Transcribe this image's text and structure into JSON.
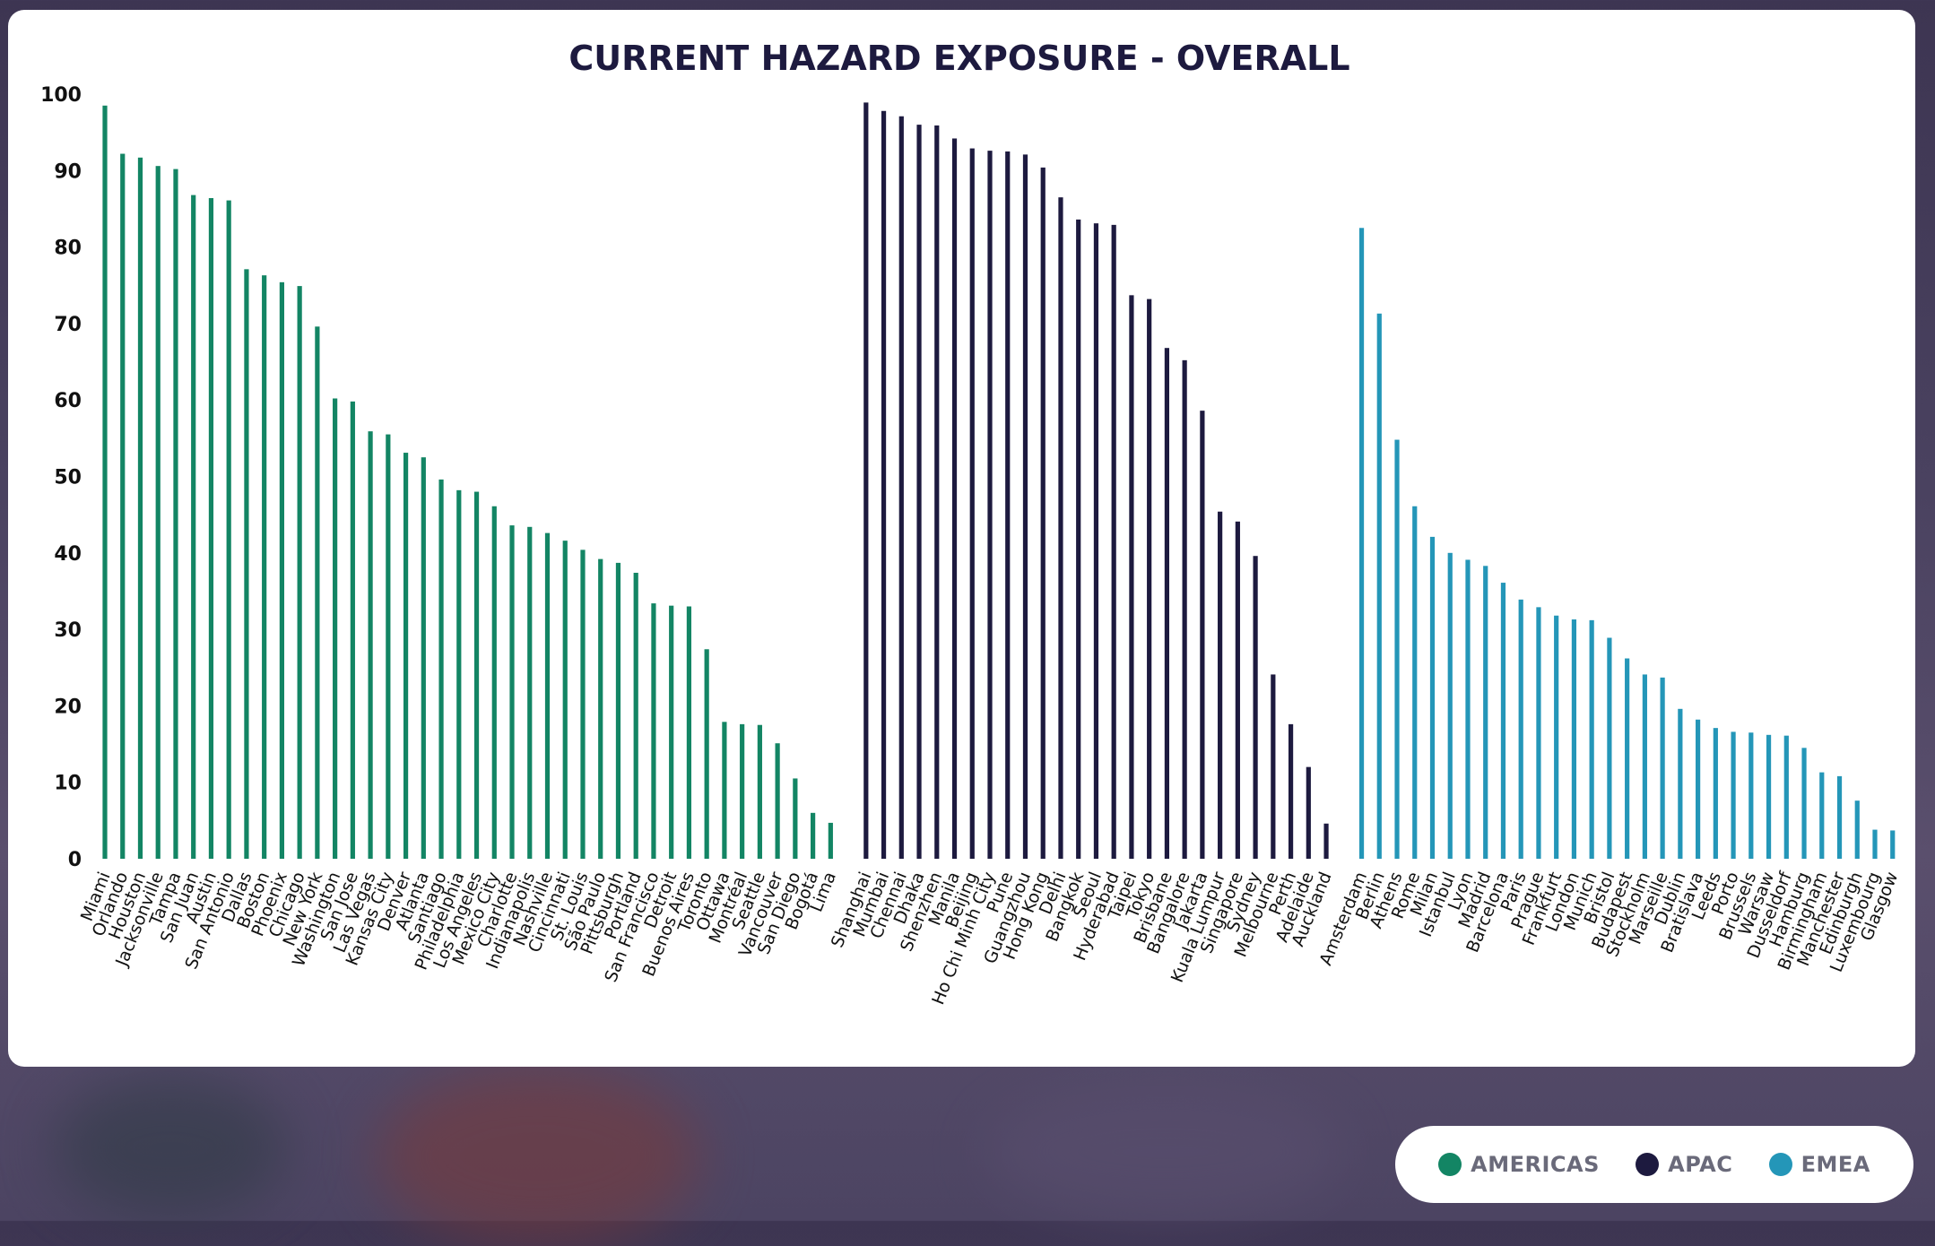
{
  "colors": {
    "americas": "#138564",
    "apac": "#1d1a3f",
    "emea": "#2496b8",
    "title": "#1d1a3f",
    "axis_text": "#111111"
  },
  "legend": [
    {
      "label": "AMERICAS",
      "color": "#138564"
    },
    {
      "label": "APAC",
      "color": "#1d1a3f"
    },
    {
      "label": "EMEA",
      "color": "#2496b8"
    }
  ],
  "chart_data": {
    "type": "bar",
    "title": "CURRENT HAZARD EXPOSURE - OVERALL",
    "xlabel": "",
    "ylabel": "",
    "ylim": [
      0,
      100
    ],
    "yticks": [
      0,
      10,
      20,
      30,
      40,
      50,
      60,
      70,
      80,
      90,
      100
    ],
    "grid": false,
    "legend_position": "bottom-right",
    "series": [
      {
        "name": "AMERICAS",
        "color": "#138564",
        "categories": [
          "Miami",
          "Orlando",
          "Houston",
          "Jacksonville",
          "Tampa",
          "San Juan",
          "Austin",
          "San Antonio",
          "Dallas",
          "Boston",
          "Phoenix",
          "Chicago",
          "New York",
          "Washington",
          "San Jose",
          "Las Vegas",
          "Kansas City",
          "Denver",
          "Atlanta",
          "Santiago",
          "Philadelphia",
          "Los Angeles",
          "Mexico City",
          "Charlotte",
          "Indianapolis",
          "Nashville",
          "Cincinnati",
          "St. Louis",
          "São Paulo",
          "Pittsburgh",
          "Portland",
          "San Francisco",
          "Detroit",
          "Buenos Aires",
          "Toronto",
          "Ottawa",
          "Montréal",
          "Seattle",
          "Vancouver",
          "San Diego",
          "Bogotá",
          "Lima"
        ],
        "values": [
          98.5,
          92.2,
          91.7,
          90.6,
          90.2,
          86.8,
          86.4,
          86.1,
          77.1,
          76.3,
          75.4,
          74.9,
          69.6,
          60.2,
          59.8,
          55.9,
          55.5,
          53.1,
          52.5,
          49.6,
          48.2,
          48.0,
          46.1,
          43.6,
          43.4,
          42.6,
          41.6,
          40.4,
          39.2,
          38.7,
          37.4,
          33.4,
          33.1,
          33.0,
          27.4,
          17.9,
          17.6,
          17.5,
          15.1,
          10.5,
          6.0,
          4.7
        ]
      },
      {
        "name": "APAC",
        "color": "#1d1a3f",
        "categories": [
          "Shanghai",
          "Mumbai",
          "Chennai",
          "Dhaka",
          "Shenzhen",
          "Manila",
          "Beijing",
          "Ho Chi Minh City",
          "Pune",
          "Guangzhou",
          "Hong Kong",
          "Delhi",
          "Bangkok",
          "Seoul",
          "Hyderabad",
          "Taipei",
          "Tokyo",
          "Brisbane",
          "Bangalore",
          "Jakarta",
          "Kuala Lumpur",
          "Singapore",
          "Sydney",
          "Melbourne",
          "Perth",
          "Adelaide",
          "Auckland"
        ],
        "values": [
          98.9,
          97.8,
          97.1,
          96.0,
          95.9,
          94.2,
          92.9,
          92.6,
          92.5,
          92.1,
          90.4,
          86.5,
          83.6,
          83.1,
          82.9,
          73.7,
          73.2,
          66.8,
          65.2,
          58.6,
          45.4,
          44.1,
          39.6,
          24.1,
          17.6,
          12.0,
          4.6
        ]
      },
      {
        "name": "EMEA",
        "color": "#2496b8",
        "categories": [
          "Amsterdam",
          "Berlin",
          "Athens",
          "Rome",
          "Milan",
          "Istanbul",
          "Lyon",
          "Madrid",
          "Barcelona",
          "Paris",
          "Prague",
          "Frankfurt",
          "London",
          "Munich",
          "Bristol",
          "Budapest",
          "Stockholm",
          "Marseille",
          "Dublin",
          "Bratislava",
          "Leeds",
          "Porto",
          "Brussels",
          "Warsaw",
          "Dusseldorf",
          "Hamburg",
          "Birmingham",
          "Manchester",
          "Edinburgh",
          "Luxembourg",
          "Glasgow"
        ],
        "values": [
          82.5,
          71.3,
          54.8,
          46.1,
          42.1,
          40.0,
          39.1,
          38.3,
          36.1,
          33.9,
          32.9,
          31.8,
          31.3,
          31.2,
          28.9,
          26.2,
          24.1,
          23.7,
          19.6,
          18.2,
          17.1,
          16.6,
          16.5,
          16.2,
          16.1,
          14.5,
          11.3,
          10.8,
          7.6,
          3.8,
          3.7
        ]
      }
    ]
  }
}
